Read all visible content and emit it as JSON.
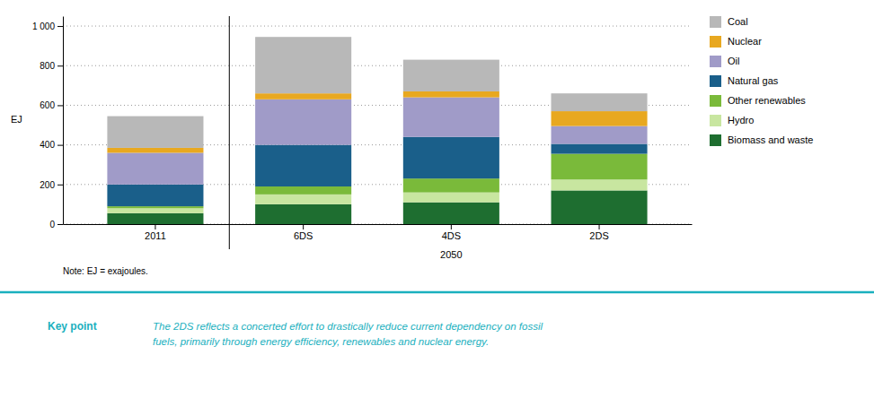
{
  "chart_data": {
    "type": "bar",
    "stacked": true,
    "grid": true,
    "legend": "right",
    "y_label": "EJ",
    "categories": [
      "2011",
      "6DS",
      "4DS",
      "2DS"
    ],
    "group_label": "2050",
    "note": "Note: EJ = exajoules.",
    "key_point_label": "Key point",
    "key_point_text": "The 2DS reflects a concerted effort to drastically reduce current dependency on fossil\nfuels, primarily through energy efficiency, renewables and nuclear energy.",
    "ylim": [
      0,
      1050
    ],
    "yticks": [
      0,
      200,
      400,
      600,
      800,
      {
        "value": 1000,
        "label": "1 000"
      }
    ],
    "series": [
      {
        "name": "Biomass and waste",
        "color": "#1e6e30",
        "values": [
          55,
          100,
          110,
          170
        ]
      },
      {
        "name": "Hydro",
        "color": "#c8e6a0",
        "values": [
          25,
          50,
          50,
          55
        ]
      },
      {
        "name": "Other renewables",
        "color": "#7aba3a",
        "values": [
          10,
          40,
          70,
          130
        ]
      },
      {
        "name": "Natural gas",
        "color": "#1a5f8a",
        "values": [
          110,
          210,
          210,
          50
        ]
      },
      {
        "name": "Oil",
        "color": "#a09bc8",
        "values": [
          160,
          230,
          200,
          90
        ]
      },
      {
        "name": "Nuclear",
        "color": "#e8a820",
        "values": [
          25,
          30,
          30,
          75
        ]
      },
      {
        "name": "Coal",
        "color": "#b8b8b8",
        "values": [
          160,
          285,
          160,
          90
        ]
      }
    ]
  }
}
